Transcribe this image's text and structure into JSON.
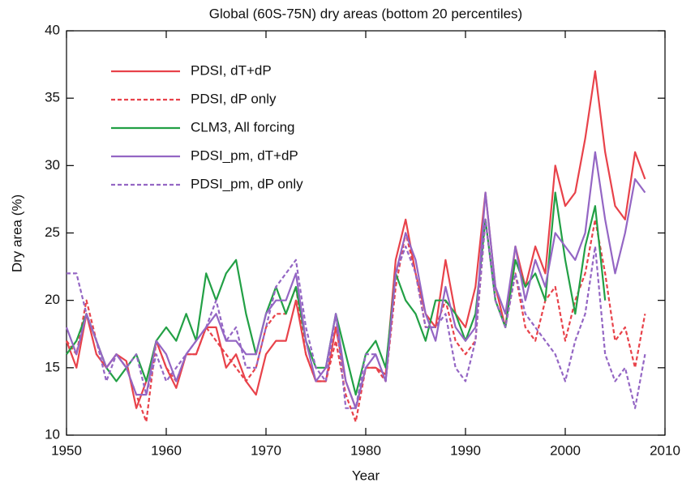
{
  "chart_data": {
    "type": "line",
    "title": "Global (60S-75N) dry areas (bottom 20 percentiles)",
    "x_label": "Year",
    "y_label": "Dry area (%)",
    "x": [
      1950,
      1951,
      1952,
      1953,
      1954,
      1955,
      1956,
      1957,
      1958,
      1959,
      1960,
      1961,
      1962,
      1963,
      1964,
      1965,
      1966,
      1967,
      1968,
      1969,
      1970,
      1971,
      1972,
      1973,
      1974,
      1975,
      1976,
      1977,
      1978,
      1979,
      1980,
      1981,
      1982,
      1983,
      1984,
      1985,
      1986,
      1987,
      1988,
      1989,
      1990,
      1991,
      1992,
      1993,
      1994,
      1995,
      1996,
      1997,
      1998,
      1999,
      2000,
      2001,
      2002,
      2003,
      2004,
      2005,
      2006,
      2007,
      2008
    ],
    "series": [
      {
        "name": "PDSI, dT+dP",
        "color": "#e8424a",
        "dashed": false,
        "values": [
          17,
          15,
          19,
          16,
          15,
          16,
          15.5,
          12,
          14,
          17,
          15,
          13.5,
          16,
          16,
          18,
          18,
          15,
          16,
          14,
          13,
          16,
          17,
          17,
          20,
          16,
          14,
          14,
          18,
          14,
          12,
          15,
          15,
          14.5,
          23,
          26,
          22,
          19,
          18,
          23,
          19,
          18,
          21,
          28,
          21,
          18,
          24,
          21,
          24,
          22,
          30,
          27,
          28,
          32,
          37,
          31,
          27,
          26,
          31,
          29
        ]
      },
      {
        "name": "PDSI, dP only",
        "color": "#e8424a",
        "dashed": true,
        "values": [
          17,
          16,
          20,
          17,
          15,
          16,
          15,
          13,
          11,
          17,
          15,
          14,
          16,
          16,
          18,
          17,
          16,
          15,
          14,
          15,
          18,
          19,
          19,
          21,
          16,
          14,
          14,
          17,
          13,
          11,
          15,
          15,
          14,
          21,
          25,
          22,
          18,
          18,
          20,
          17,
          16,
          17,
          26,
          20,
          18,
          22,
          18,
          17,
          20,
          21,
          17,
          20,
          22,
          26,
          22,
          17,
          18,
          15,
          19
        ]
      },
      {
        "name": "CLM3, All forcing",
        "color": "#22a045",
        "dashed": false,
        "values": [
          16,
          17,
          19,
          17,
          15,
          14,
          15,
          16,
          14,
          17,
          18,
          17,
          19,
          17,
          22,
          20,
          22,
          23,
          19,
          16,
          19,
          21,
          19,
          21,
          17,
          15,
          15,
          19,
          16,
          13,
          16,
          17,
          15,
          22,
          20,
          19,
          17,
          20,
          20,
          19,
          17,
          19,
          26,
          20,
          18,
          23,
          21,
          22,
          20,
          28,
          23,
          19,
          24,
          27,
          20,
          null,
          null,
          null,
          null
        ]
      },
      {
        "name": "PDSI_pm, dT+dP",
        "color": "#9466c4",
        "dashed": false,
        "values": [
          18,
          16,
          19,
          17,
          15,
          16,
          15,
          13,
          13,
          17,
          16,
          14,
          16,
          17,
          18,
          19,
          17,
          17,
          16,
          16,
          19,
          20,
          20,
          22,
          17,
          14,
          15,
          19,
          14,
          12,
          15,
          16,
          14,
          22,
          25,
          23,
          19,
          17,
          21,
          18,
          17,
          18,
          28,
          21,
          19,
          24,
          20,
          23,
          21,
          25,
          24,
          23,
          25,
          31,
          26,
          22,
          25,
          29,
          28
        ]
      },
      {
        "name": "PDSI_pm, dP only",
        "color": "#9466c4",
        "dashed": true,
        "values": [
          22,
          22,
          19,
          17,
          14,
          16,
          15,
          16,
          13,
          16,
          14,
          15,
          16,
          17,
          18,
          20,
          17,
          18,
          15,
          15,
          18,
          21,
          22,
          23,
          18,
          15,
          14,
          19,
          12,
          12,
          16,
          16,
          14,
          22,
          24,
          22,
          18,
          18,
          19,
          15,
          14,
          17,
          26,
          20,
          18,
          22,
          19,
          18,
          17,
          16,
          14,
          17,
          19,
          24,
          16,
          14,
          15,
          12,
          16
        ]
      }
    ],
    "xlim": [
      1950,
      2010
    ],
    "xticks": [
      1950,
      1960,
      1970,
      1980,
      1990,
      2000,
      2010
    ],
    "ylim": [
      10,
      40
    ],
    "yticks": [
      10,
      15,
      20,
      25,
      30,
      35,
      40
    ],
    "legend": "upper left"
  }
}
